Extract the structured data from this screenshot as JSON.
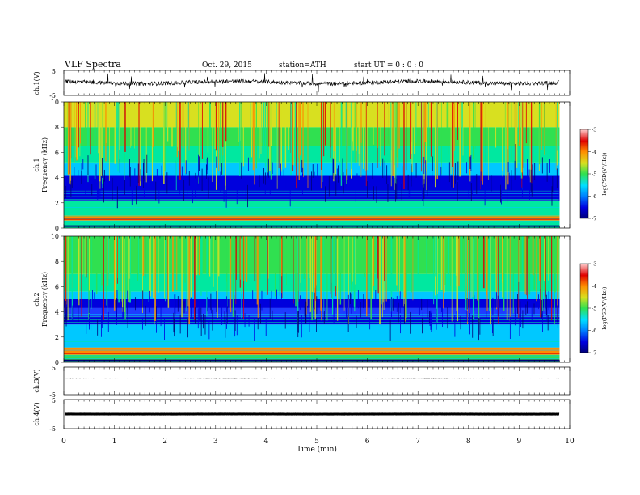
{
  "header": {
    "title": "VLF Spectra",
    "date": "Oct. 29, 2015",
    "station": "station=ATH",
    "start": "start UT =  0 : 0 : 0"
  },
  "chart_data": {
    "type": "heatmap",
    "xlabel": "Time (min)",
    "xlim": [
      0,
      10
    ],
    "x_ticks": [
      "0",
      "1",
      "2",
      "3",
      "4",
      "5",
      "6",
      "7",
      "8",
      "9",
      "10"
    ],
    "data_end_min": 9.8,
    "panels": [
      {
        "name": "waveform-ch1",
        "ylabel": "ch.1(V)",
        "ylim": [
          -5,
          5
        ],
        "y_ticks": [
          "5",
          "-5"
        ],
        "baseline": 0.2,
        "type": "line"
      },
      {
        "name": "spectrogram-ch1",
        "ylabel_line1": "ch.1",
        "ylabel_line2": "Frequency (kHz)",
        "ylim": [
          0,
          10
        ],
        "y_ticks": [
          "0",
          "2",
          "4",
          "6",
          "8",
          "10"
        ],
        "type": "heatmap",
        "colorbar": {
          "label": "log(PSD(V²/Hz))",
          "range": [
            -7,
            -3
          ],
          "ticks": [
            "-3",
            "-4",
            "-5",
            "-6",
            "-7"
          ]
        }
      },
      {
        "name": "spectrogram-ch2",
        "ylabel_line1": "ch.2",
        "ylabel_line2": "Frequency (kHz)",
        "ylim": [
          0,
          10
        ],
        "y_ticks": [
          "0",
          "2",
          "4",
          "6",
          "8",
          "10"
        ],
        "type": "heatmap",
        "colorbar": {
          "label": "log(PSD(V²/Hz))",
          "range": [
            -7,
            -3
          ],
          "ticks": [
            "-3",
            "-4",
            "-5",
            "-6",
            "-7"
          ]
        }
      },
      {
        "name": "waveform-ch3",
        "ylabel": "ch.3(V)",
        "ylim": [
          -5,
          5
        ],
        "y_ticks": [
          "5",
          "-5"
        ],
        "baseline": 0.8,
        "type": "line"
      },
      {
        "name": "waveform-ch4",
        "ylabel": "ch.4(V)",
        "ylim": [
          -5,
          5
        ],
        "y_ticks": [
          "5",
          "-5"
        ],
        "baseline": 0.0,
        "type": "line"
      }
    ]
  },
  "colors": {
    "scale": [
      "#00007a",
      "#0000dd",
      "#1e3cff",
      "#00c8ff",
      "#00e8a0",
      "#30e050",
      "#d8e020",
      "#ff8c00",
      "#e00000",
      "#ffb0b0"
    ]
  }
}
